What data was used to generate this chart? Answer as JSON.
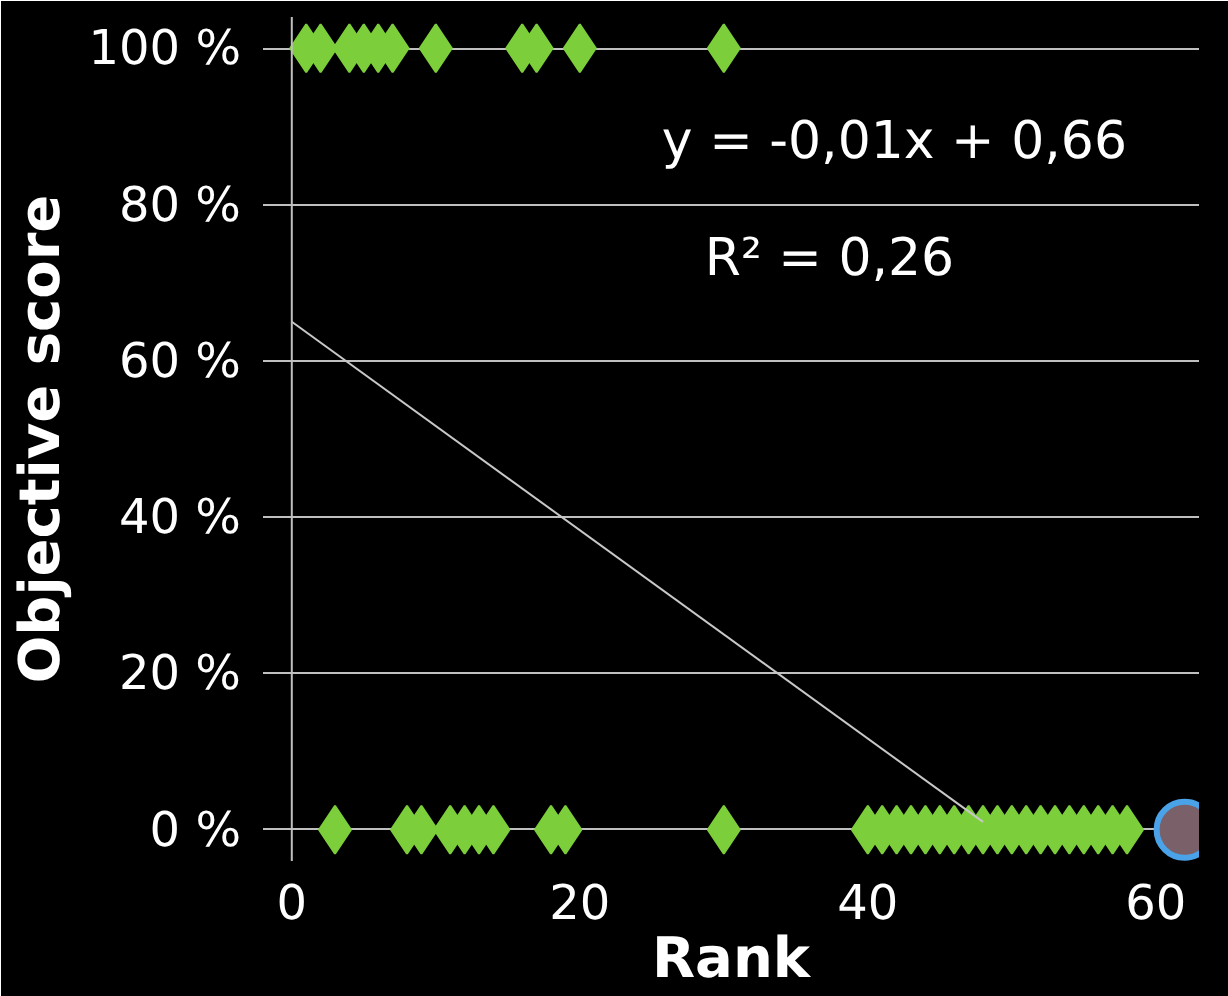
{
  "chart_data": {
    "type": "scatter",
    "xlabel": "Rank",
    "ylabel": "Objective score",
    "xlim": [
      -2,
      63
    ],
    "ylim": [
      -4,
      104
    ],
    "xticks": [
      0,
      20,
      40,
      60
    ],
    "yticks": [
      {
        "value": 0,
        "label": "0 %"
      },
      {
        "value": 20,
        "label": "20 %"
      },
      {
        "value": 40,
        "label": "40 %"
      },
      {
        "value": 60,
        "label": "60 %"
      },
      {
        "value": 80,
        "label": "80 %"
      },
      {
        "value": 100,
        "label": "100 %"
      }
    ],
    "grid": "y",
    "ref_lines": [
      {
        "axis": "x",
        "value": 0,
        "color": "#bfbfbf"
      }
    ],
    "annotations": [
      "y = -0,01x + 0,66",
      "R² = 0,26"
    ],
    "series": [
      {
        "color": "#7ccf3a",
        "marker": "diamond",
        "x": [
          1,
          2,
          4,
          5,
          6,
          7,
          10,
          16,
          17,
          20,
          30
        ],
        "values": [
          100,
          100,
          100,
          100,
          100,
          100,
          100,
          100,
          100,
          100,
          100
        ]
      },
      {
        "color": "#7ccf3a",
        "marker": "diamond",
        "x": [
          3,
          8,
          9,
          11,
          12,
          13,
          14,
          18,
          19,
          30,
          40,
          41,
          42,
          43,
          44,
          45,
          46,
          47,
          48,
          49,
          50,
          51,
          52,
          53,
          54,
          55,
          56,
          57,
          58
        ],
        "values": [
          0,
          0,
          0,
          0,
          0,
          0,
          0,
          0,
          0,
          0,
          0,
          0,
          0,
          0,
          0,
          0,
          0,
          0,
          0,
          0,
          0,
          0,
          0,
          0,
          0,
          0,
          0,
          0,
          0
        ]
      },
      {
        "color": "#7a6068",
        "marker": "circle",
        "x": [
          62
        ],
        "values": [
          0
        ]
      },
      {
        "type": "line",
        "color": "#c8c8c8",
        "x": [
          0,
          48
        ],
        "values": [
          65,
          1
        ]
      }
    ]
  }
}
